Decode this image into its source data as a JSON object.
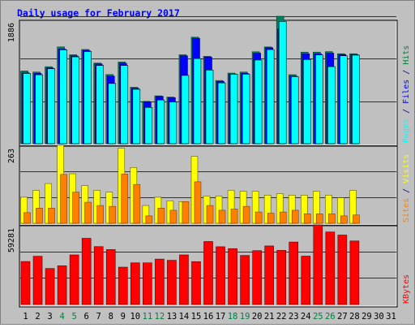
{
  "chart_data": {
    "title": "Daily usage for February 2017",
    "type": "bar",
    "days": [
      "1",
      "2",
      "3",
      "4",
      "5",
      "6",
      "7",
      "8",
      "9",
      "10",
      "11",
      "12",
      "13",
      "14",
      "15",
      "16",
      "17",
      "18",
      "19",
      "20",
      "21",
      "22",
      "23",
      "24",
      "25",
      "26",
      "27",
      "28",
      "29",
      "30",
      "31"
    ],
    "weekend_days": [
      4,
      5,
      11,
      12,
      18,
      19,
      25,
      26
    ],
    "panels": [
      {
        "id": "top",
        "ymax_label": "1886",
        "ymax": 1886,
        "legend": [
          {
            "text": "Pages",
            "color": "#00ffff"
          },
          {
            "text": " / ",
            "color": "#000080"
          },
          {
            "text": "Files",
            "color": "#0000ff"
          },
          {
            "text": " / ",
            "color": "#000080"
          },
          {
            "text": "Hits",
            "color": "#008040"
          }
        ],
        "series": [
          {
            "name": "Hits",
            "color": "#00805c",
            "values": [
              1076,
              1060,
              1139,
              1432,
              1316,
              1394,
              1193,
              1023,
              1209,
              835,
              627,
              708,
              690,
              1316,
              1576,
              1293,
              935,
              1045,
              1060,
              1360,
              1432,
              1886,
              1021,
              1355,
              1355,
              1362,
              1331,
              1331
            ]
          },
          {
            "name": "Files",
            "color": "#0000ff",
            "values": [
              1050,
              1040,
              1120,
              1400,
              1300,
              1380,
              1180,
              1000,
              1190,
              820,
              620,
              700,
              680,
              1300,
              1560,
              1280,
              920,
              1030,
              1040,
              1340,
              1420,
              1700,
              1000,
              1330,
              1330,
              1340,
              1320,
              1320
            ]
          },
          {
            "name": "Pages",
            "color": "#00ffff",
            "values": [
              1040,
              1020,
              1110,
              1390,
              1285,
              1364,
              1158,
              891,
              1158,
              805,
              537,
              647,
              618,
              1010,
              1260,
              1090,
              900,
              1028,
              1030,
              1238,
              1393,
              1810,
              992,
              1246,
              1315,
              1140,
              1301,
              1310
            ]
          }
        ]
      },
      {
        "id": "middle",
        "ymax_label": "263",
        "ymax": 263,
        "legend": [
          {
            "text": "Sites",
            "color": "#ff8000"
          },
          {
            "text": " / ",
            "color": "#000080"
          },
          {
            "text": "Visits",
            "color": "#ffff00"
          }
        ],
        "series": [
          {
            "name": "Visits",
            "color": "#ffff00",
            "values": [
              88,
              111,
              134,
              263,
              167,
              127,
              111,
              105,
              253,
              188,
              60,
              88,
              76,
              73,
              226,
              92,
              92,
              111,
              108,
              108,
              95,
              100,
              95,
              95,
              108,
              95,
              86,
              111
            ]
          },
          {
            "name": "Sites",
            "color": "#ff8000",
            "values": [
              36,
              51,
              51,
              165,
              105,
              71,
              60,
              57,
              166,
              131,
              25,
              51,
              44,
              73,
              140,
              60,
              44,
              48,
              57,
              38,
              34,
              38,
              44,
              32,
              32,
              32,
              25,
              28
            ]
          }
        ]
      },
      {
        "id": "bottom",
        "ymax_label": "59281",
        "ymax": 59281,
        "legend": [
          {
            "text": "KBytes",
            "color": "#ff0000"
          }
        ],
        "series": [
          {
            "name": "KBytes",
            "color": "#ff0000",
            "values": [
              32000,
              35900,
              26800,
              28800,
              36900,
              49300,
              43100,
              40900,
              27800,
              31000,
              31000,
              33800,
              32900,
              36900,
              31900,
              46900,
              43000,
              41600,
              36500,
              40100,
              43600,
              40300,
              46500,
              36000,
              59281,
              54000,
              51700,
              47300
            ]
          }
        ]
      }
    ]
  }
}
